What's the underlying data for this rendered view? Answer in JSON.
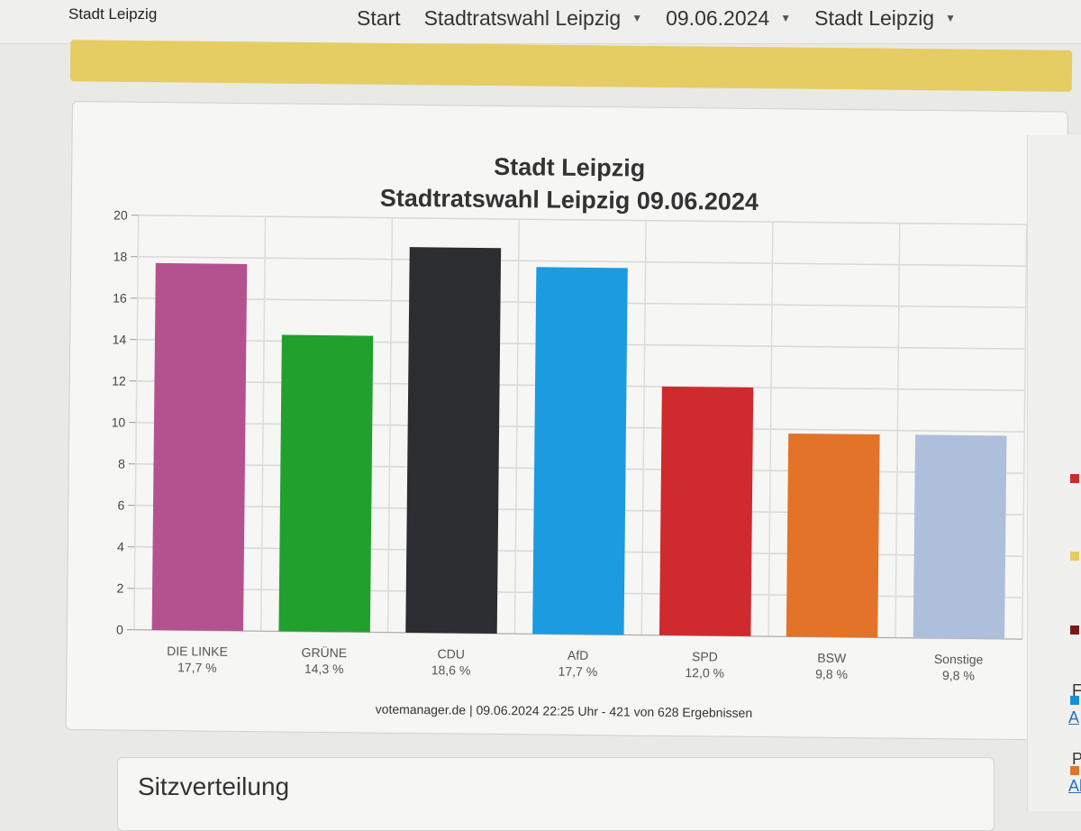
{
  "header": {
    "brand": "Stadt Leipzig",
    "nav": [
      {
        "label": "Start",
        "has_caret": false
      },
      {
        "label": "Stadtratswahl Leipzig",
        "has_caret": true
      },
      {
        "label": "09.06.2024",
        "has_caret": true
      },
      {
        "label": "Stadt Leipzig",
        "has_caret": true
      }
    ]
  },
  "chart_panel": {
    "title_line1": "Stadt Leipzig",
    "title_line2": "Stadtratswahl Leipzig 09.06.2024",
    "footer": "votemanager.de | 09.06.2024 22:25 Uhr - 421 von 628 Ergebnissen"
  },
  "chart_data": {
    "type": "bar",
    "title": "Stadt Leipzig",
    "subtitle": "Stadtratswahl Leipzig 09.06.2024",
    "categories": [
      "DIE LINKE",
      "GRÜNE",
      "CDU",
      "AfD",
      "SPD",
      "BSW",
      "Sonstige"
    ],
    "value_labels": [
      "17,7 %",
      "14,3 %",
      "18,6 %",
      "17,7 %",
      "12,0 %",
      "9,8 %",
      "9,8 %"
    ],
    "values": [
      17.7,
      14.3,
      18.6,
      17.7,
      12.0,
      9.8,
      9.8
    ],
    "colors": [
      "#b4528f",
      "#21a02e",
      "#2b2d31",
      "#1c9be0",
      "#cf2a2e",
      "#e27328",
      "#aebfdc"
    ],
    "ylim": [
      0,
      20
    ],
    "yticks": [
      0,
      2,
      4,
      6,
      8,
      10,
      12,
      14,
      16,
      18,
      20
    ],
    "grid": true
  },
  "seats": {
    "title": "Sitzverteilung"
  },
  "right_sidebar": {
    "squares": [
      "#cf2a2e",
      "#e6cd63",
      "#7a1a1a",
      "#1c8ed6",
      "#e27328"
    ],
    "labels": [
      "F",
      "Pl"
    ],
    "links": [
      "A",
      "All"
    ]
  }
}
